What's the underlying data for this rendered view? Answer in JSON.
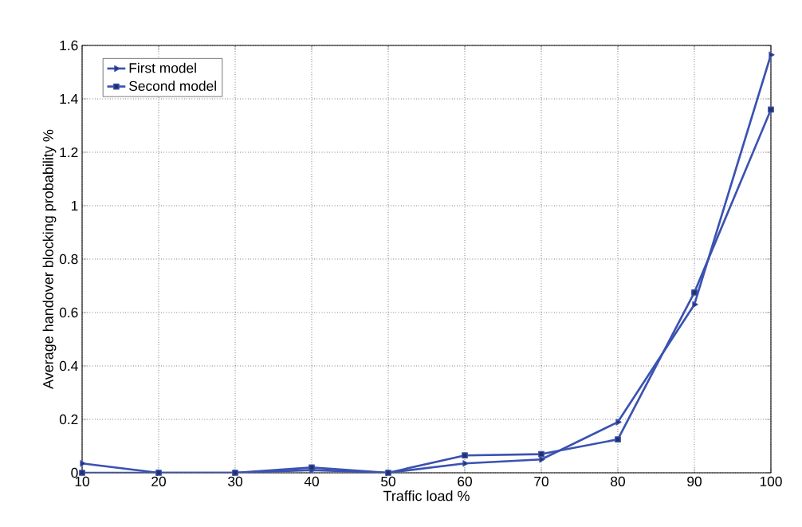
{
  "chart_data": {
    "type": "line",
    "xlabel": "Traffic load %",
    "ylabel": "Average handover blocking probability %",
    "x": [
      10,
      20,
      30,
      40,
      50,
      60,
      70,
      80,
      90,
      100
    ],
    "series": [
      {
        "name": "First model",
        "color": "#3b52b0",
        "marker": "triangle",
        "values": [
          0.035,
          0,
          0,
          0.01,
          0,
          0.035,
          0.05,
          0.19,
          0.63,
          1.565
        ]
      },
      {
        "name": "Second model",
        "color": "#3b52b0",
        "marker": "square",
        "values": [
          0,
          0,
          0,
          0.02,
          0,
          0.065,
          0.07,
          0.125,
          0.675,
          1.36
        ]
      }
    ],
    "xlim": [
      10,
      100
    ],
    "ylim": [
      0,
      1.6
    ],
    "xticks": [
      10,
      20,
      30,
      40,
      50,
      60,
      70,
      80,
      90,
      100
    ],
    "yticks": [
      0,
      0.2,
      0.4,
      0.6,
      0.8,
      1,
      1.2,
      1.4,
      1.6
    ],
    "grid": true,
    "legend": "top left"
  }
}
